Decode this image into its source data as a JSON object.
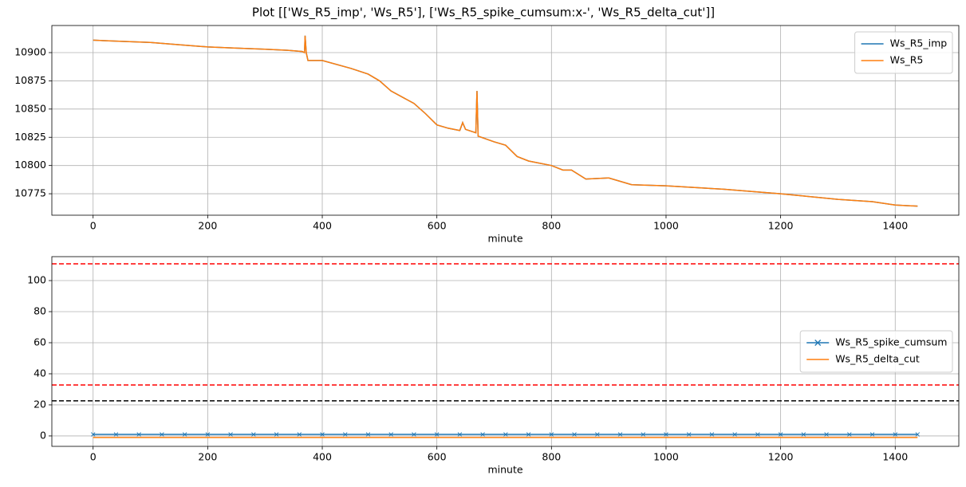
{
  "title": "Plot [['Ws_R5_imp', 'Ws_R5'], ['Ws_R5_spike_cumsum:x-', 'Ws_R5_delta_cut']]",
  "chart_data": [
    {
      "type": "line",
      "xlabel": "minute",
      "grid": true,
      "legend": "upper right",
      "xlim": [
        -72,
        1511
      ],
      "xticks": [
        0,
        200,
        400,
        600,
        800,
        1000,
        1200,
        1400
      ],
      "ylim": [
        10756,
        10924
      ],
      "yticks": [
        10775,
        10800,
        10825,
        10850,
        10875,
        10900
      ],
      "x": [
        0,
        50,
        100,
        150,
        200,
        250,
        300,
        340,
        365,
        369,
        370,
        372,
        375,
        400,
        450,
        480,
        500,
        520,
        560,
        580,
        600,
        620,
        640,
        645,
        650,
        668,
        670,
        672,
        700,
        720,
        740,
        760,
        800,
        820,
        835,
        860,
        900,
        940,
        1000,
        1100,
        1200,
        1240,
        1300,
        1360,
        1400,
        1439
      ],
      "series": [
        {
          "name": "Ws_R5_imp",
          "color": "#1f77b4",
          "values": [
            10911,
            10910,
            10909,
            10907,
            10905,
            10904,
            10903,
            10902,
            10901,
            10900,
            10915,
            10900,
            10893,
            10893,
            10886,
            10881,
            10875,
            10866,
            10855,
            10846,
            10836,
            10833,
            10831,
            10838,
            10832,
            10829,
            10866,
            10826,
            10821,
            10818,
            10808,
            10804,
            10800,
            10796,
            10796,
            10788,
            10789,
            10783,
            10782,
            10779,
            10775,
            10773,
            10770,
            10768,
            10765,
            10764
          ]
        },
        {
          "name": "Ws_R5",
          "color": "#ff7f0e",
          "values": [
            10911,
            10910,
            10909,
            10907,
            10905,
            10904,
            10903,
            10902,
            10901,
            10900,
            10915,
            10900,
            10893,
            10893,
            10886,
            10881,
            10875,
            10866,
            10855,
            10846,
            10836,
            10833,
            10831,
            10838,
            10832,
            10829,
            10866,
            10826,
            10821,
            10818,
            10808,
            10804,
            10800,
            10796,
            10796,
            10788,
            10789,
            10783,
            10782,
            10779,
            10775,
            10773,
            10770,
            10768,
            10765,
            10764
          ]
        }
      ]
    },
    {
      "type": "line",
      "xlabel": "minute",
      "grid": true,
      "legend": "center right",
      "xlim": [
        -72,
        1511
      ],
      "xticks": [
        0,
        200,
        400,
        600,
        800,
        1000,
        1200,
        1400
      ],
      "ylim": [
        -6.7,
        115.4
      ],
      "yticks": [
        0,
        20,
        40,
        60,
        80,
        100
      ],
      "x": [
        0,
        40,
        80,
        120,
        160,
        200,
        240,
        280,
        320,
        360,
        400,
        440,
        480,
        520,
        560,
        600,
        640,
        680,
        720,
        760,
        800,
        840,
        880,
        920,
        960,
        1000,
        1040,
        1080,
        1120,
        1160,
        1200,
        1240,
        1280,
        1320,
        1360,
        1400,
        1439
      ],
      "series": [
        {
          "name": "Ws_R5_spike_cumsum",
          "color": "#1f77b4",
          "marker": "x",
          "values": [
            1,
            1,
            1,
            1,
            1,
            1,
            1,
            1,
            1,
            1,
            1,
            1,
            1,
            1,
            1,
            1,
            1,
            1,
            1,
            1,
            1,
            1,
            1,
            1,
            1,
            1,
            1,
            1,
            1,
            1,
            1,
            1,
            1,
            1,
            1,
            1,
            1
          ]
        },
        {
          "name": "Ws_R5_delta_cut",
          "color": "#ff7f0e",
          "values": [
            -1,
            -1,
            -1,
            -1,
            -1,
            -1,
            -1,
            -1,
            -1,
            -1,
            -1,
            -1,
            -1,
            -1,
            -1,
            -1,
            -1,
            -1,
            -1,
            -1,
            -1,
            -1,
            -1,
            -1,
            -1,
            -1,
            -1,
            -1,
            -1,
            -1,
            -1,
            -1,
            -1,
            -1,
            -1,
            -1,
            -1
          ]
        }
      ],
      "hlines": [
        {
          "value": 110.8,
          "color": "#ff0000"
        },
        {
          "value": 32.8,
          "color": "#ff0000"
        },
        {
          "value": 22.6,
          "color": "#000000"
        }
      ]
    }
  ]
}
